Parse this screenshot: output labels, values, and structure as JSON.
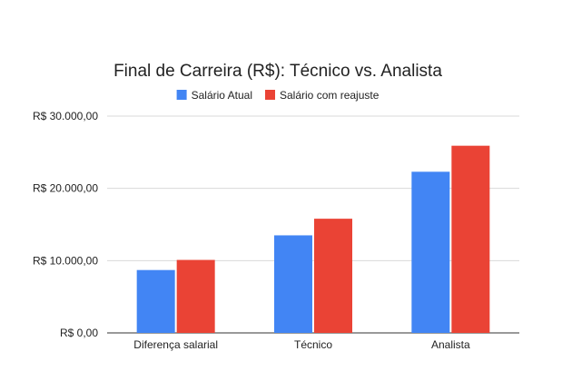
{
  "chart_data": {
    "type": "bar",
    "title": "Final de Carreira (R$): Técnico vs. Analista",
    "categories": [
      "Diferença salarial",
      "Técnico",
      "Analista"
    ],
    "series": [
      {
        "name": "Salário Atual",
        "color": "#4285F4",
        "values": [
          8700,
          13500,
          22300
        ]
      },
      {
        "name": "Salário com reajuste",
        "color": "#EA4335",
        "values": [
          10100,
          15800,
          25900
        ]
      }
    ],
    "xlabel": "",
    "ylabel": "",
    "ylim": [
      0,
      30000
    ],
    "yticks": [
      0,
      10000,
      20000,
      30000
    ],
    "ytick_labels": [
      "R$ 0,00",
      "R$ 10.000,00",
      "R$ 20.000,00",
      "R$ 30.000,00"
    ],
    "grid": true,
    "legend_position": "top"
  }
}
